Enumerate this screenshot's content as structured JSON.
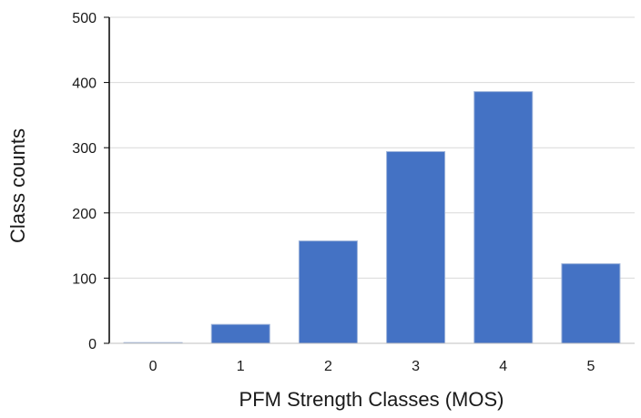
{
  "chart_data": {
    "type": "bar",
    "title": "",
    "xlabel": "PFM Strength Classes (MOS)",
    "ylabel": "Class counts",
    "categories": [
      "0",
      "1",
      "2",
      "3",
      "4",
      "5"
    ],
    "values": [
      1,
      29,
      157,
      294,
      386,
      122
    ],
    "ylim": [
      0,
      500
    ],
    "yticks": [
      "0",
      "100",
      "200",
      "300",
      "400",
      "500"
    ],
    "grid": "horizontal",
    "legend": "none",
    "bar_color": "#4472C4",
    "bar_edge_color": "#9DB3DA",
    "grid_color": "#D9D9D9",
    "axis_color": "#000000"
  }
}
